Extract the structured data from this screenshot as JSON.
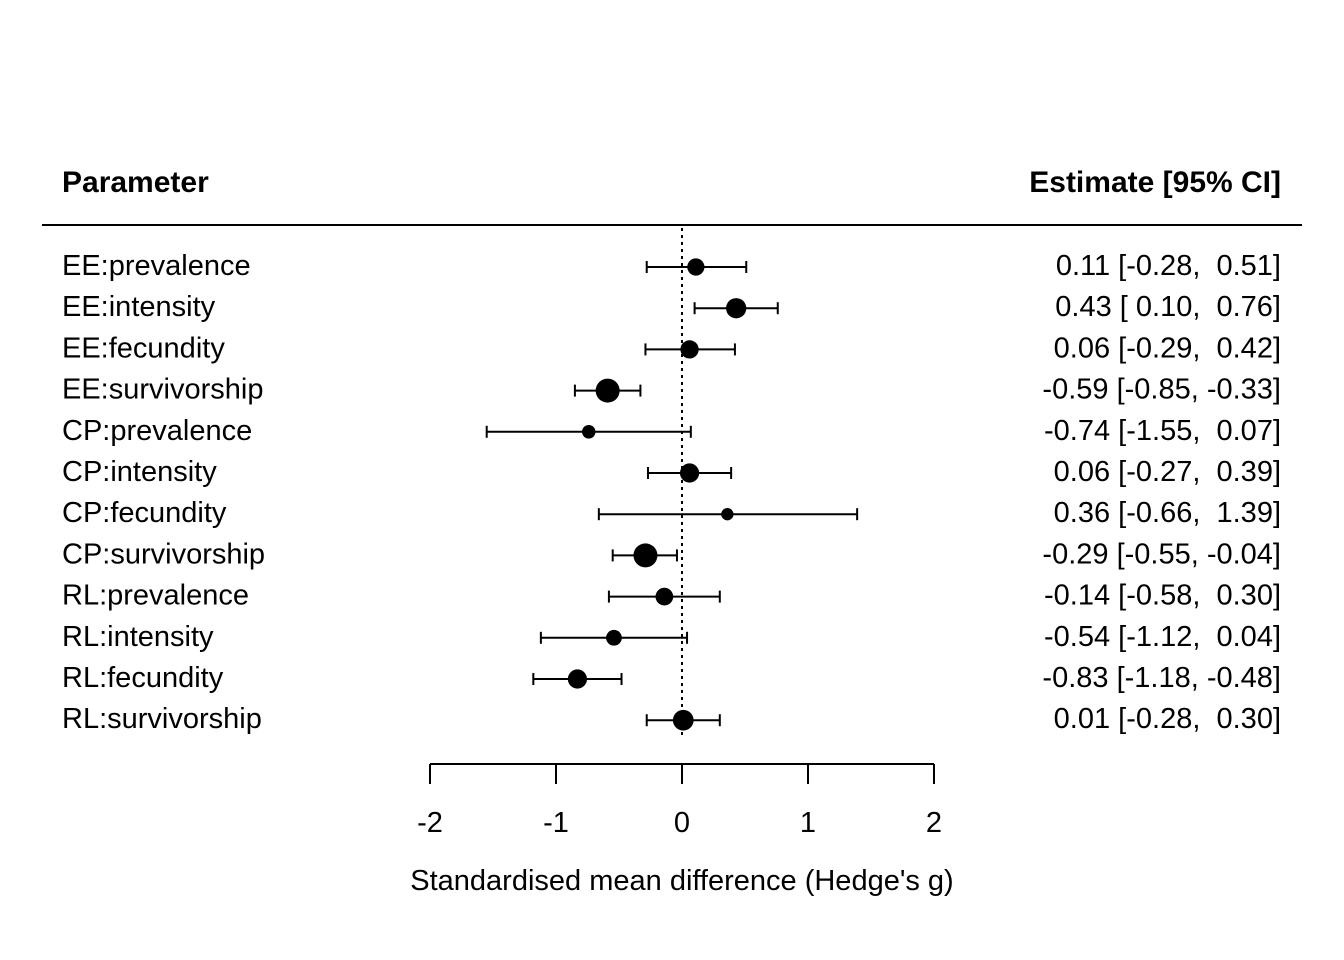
{
  "chart_data": {
    "type": "forest",
    "header": {
      "left": "Parameter",
      "right": "Estimate [95% CI]"
    },
    "xlabel": "Standardised mean difference (Hedge's g)",
    "xlim": [
      -2,
      2
    ],
    "xticks": [
      -2,
      -1,
      0,
      1,
      2
    ],
    "xtick_labels": [
      "-2",
      "-1",
      "0",
      "1",
      "2"
    ],
    "reference_line": 0,
    "rows": [
      {
        "label": "EE:prevalence",
        "estimate": 0.11,
        "lower": -0.28,
        "upper": 0.51,
        "text": "0.11 [-0.28,  0.51]",
        "weight": 0.55
      },
      {
        "label": "EE:intensity",
        "estimate": 0.43,
        "lower": 0.1,
        "upper": 0.76,
        "text": "0.43 [ 0.10,  0.76]",
        "weight": 0.75
      },
      {
        "label": "EE:fecundity",
        "estimate": 0.06,
        "lower": -0.29,
        "upper": 0.42,
        "text": "0.06 [-0.29,  0.42]",
        "weight": 0.62
      },
      {
        "label": "EE:survivorship",
        "estimate": -0.59,
        "lower": -0.85,
        "upper": -0.33,
        "text": "-0.59 [-0.85, -0.33]",
        "weight": 1.0
      },
      {
        "label": "CP:prevalence",
        "estimate": -0.74,
        "lower": -1.55,
        "upper": 0.07,
        "text": "-0.74 [-1.55,  0.07]",
        "weight": 0.3
      },
      {
        "label": "CP:intensity",
        "estimate": 0.06,
        "lower": -0.27,
        "upper": 0.39,
        "text": "0.06 [-0.27,  0.39]",
        "weight": 0.68
      },
      {
        "label": "CP:fecundity",
        "estimate": 0.36,
        "lower": -0.66,
        "upper": 1.39,
        "text": "0.36 [-0.66,  1.39]",
        "weight": 0.22
      },
      {
        "label": "CP:survivorship",
        "estimate": -0.29,
        "lower": -0.55,
        "upper": -0.04,
        "text": "-0.29 [-0.55, -0.04]",
        "weight": 1.0
      },
      {
        "label": "RL:prevalence",
        "estimate": -0.14,
        "lower": -0.58,
        "upper": 0.3,
        "text": "-0.14 [-0.58,  0.30]",
        "weight": 0.58
      },
      {
        "label": "RL:intensity",
        "estimate": -0.54,
        "lower": -1.12,
        "upper": 0.04,
        "text": "-0.54 [-1.12,  0.04]",
        "weight": 0.45
      },
      {
        "label": "RL:fecundity",
        "estimate": -0.83,
        "lower": -1.18,
        "upper": -0.48,
        "text": "-0.83 [-1.18, -0.48]",
        "weight": 0.68
      },
      {
        "label": "RL:survivorship",
        "estimate": 0.01,
        "lower": -0.28,
        "upper": 0.3,
        "text": "0.01 [-0.28,  0.30]",
        "weight": 0.78
      }
    ]
  }
}
